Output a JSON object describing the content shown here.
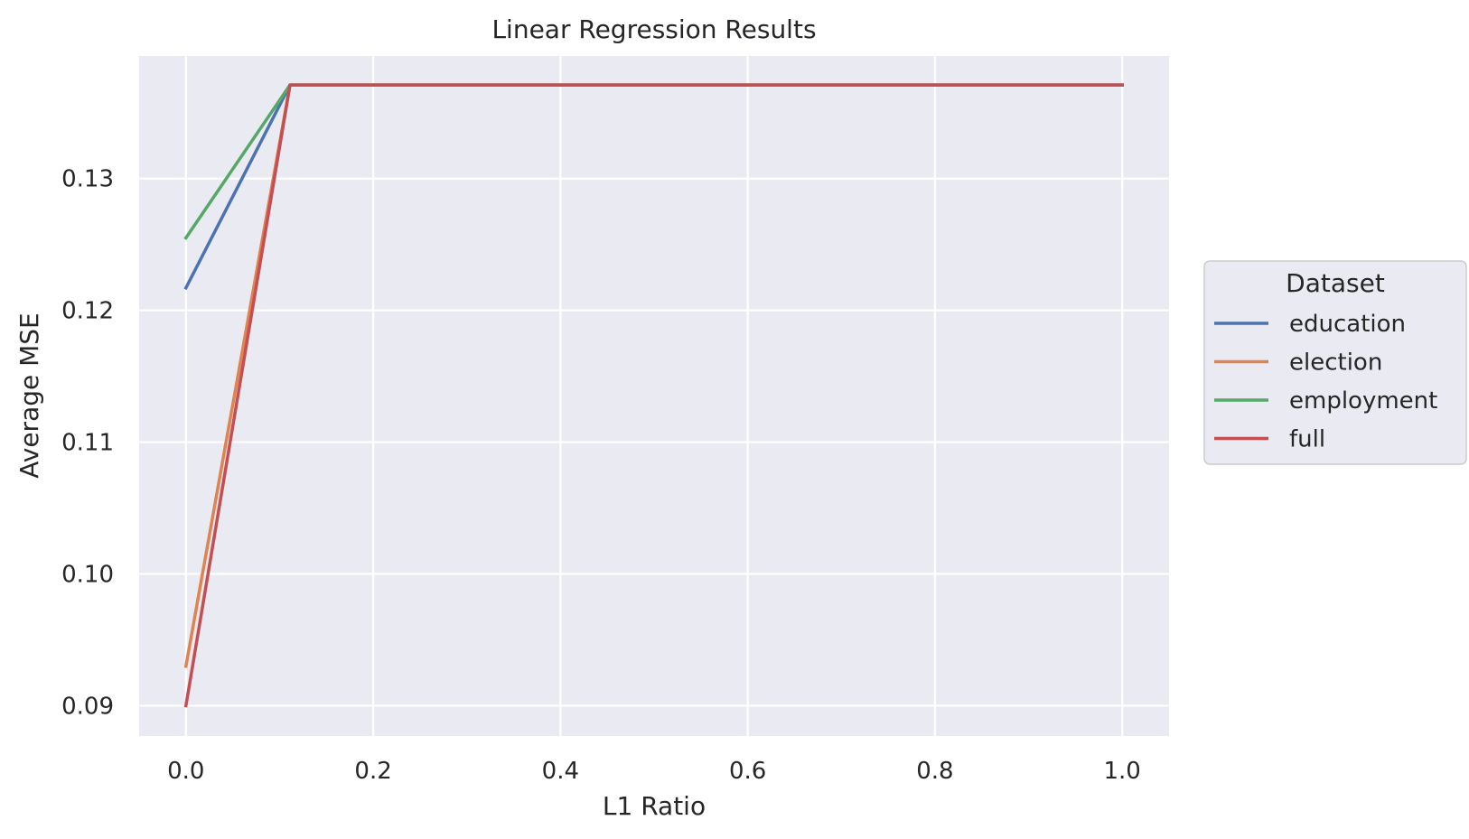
{
  "chart_data": {
    "type": "line",
    "title": "Linear Regression Results",
    "xlabel": "L1 Ratio",
    "ylabel": "Average MSE",
    "xlim": [
      -0.05,
      1.05
    ],
    "ylim": [
      0.0877,
      0.1393
    ],
    "xticks": [
      0.0,
      0.2,
      0.4,
      0.6,
      0.8,
      1.0
    ],
    "xtick_labels": [
      "0.0",
      "0.2",
      "0.4",
      "0.6",
      "0.8",
      "1.0"
    ],
    "yticks": [
      0.09,
      0.1,
      0.11,
      0.12,
      0.13
    ],
    "ytick_labels": [
      "0.09",
      "0.10",
      "0.11",
      "0.12",
      "0.13"
    ],
    "grid": true,
    "legend": {
      "title": "Dataset",
      "placement": "outside-right"
    },
    "x": [
      0.0,
      0.1111,
      0.2222,
      0.3333,
      0.4444,
      0.5556,
      0.6667,
      0.7778,
      0.8889,
      1.0
    ],
    "series": [
      {
        "name": "education",
        "color": "#4c72b0",
        "values": [
          0.1217,
          0.1371,
          0.1371,
          0.1371,
          0.1371,
          0.1371,
          0.1371,
          0.1371,
          0.1371,
          0.1371
        ]
      },
      {
        "name": "election",
        "color": "#dd8452",
        "values": [
          0.093,
          0.1371,
          0.1371,
          0.1371,
          0.1371,
          0.1371,
          0.1371,
          0.1371,
          0.1371,
          0.1371
        ]
      },
      {
        "name": "employment",
        "color": "#55a868",
        "values": [
          0.1255,
          0.1371,
          0.1371,
          0.1371,
          0.1371,
          0.1371,
          0.1371,
          0.1371,
          0.1371,
          0.1371
        ]
      },
      {
        "name": "full",
        "color": "#c44e52",
        "values": [
          0.09,
          0.1371,
          0.1371,
          0.1371,
          0.1371,
          0.1371,
          0.1371,
          0.1371,
          0.1371,
          0.1371
        ]
      }
    ]
  }
}
